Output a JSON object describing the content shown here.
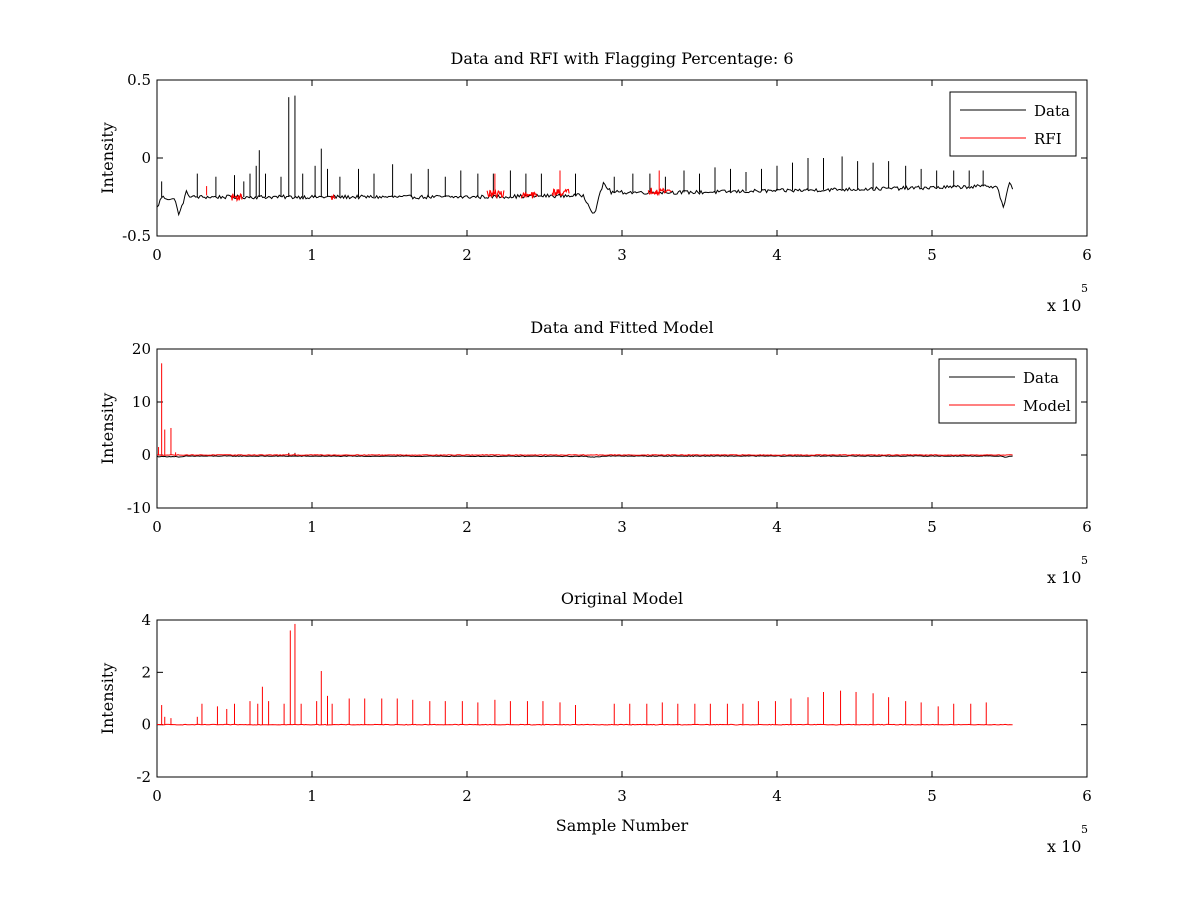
{
  "figure": {
    "background": "#ffffff",
    "xlabel_bottom": "Sample Number"
  },
  "chart_data": [
    {
      "type": "line",
      "title": "Data and RFI with Flagging Percentage: 6",
      "xlabel": "",
      "ylabel": "Intensity",
      "xlim": [
        0,
        6
      ],
      "ylim": [
        -0.5,
        0.5
      ],
      "x_ticks": [
        "0",
        "1",
        "2",
        "3",
        "4",
        "5",
        "6"
      ],
      "y_ticks": [
        "0.5",
        "0",
        "-0.5"
      ],
      "x_multiplier": {
        "base": "x 10",
        "exponent": "5"
      },
      "legend": {
        "position": "top-right",
        "entries": [
          "Data",
          "RFI"
        ]
      },
      "series": [
        {
          "name": "Data",
          "color": "#000000",
          "baseline": [
            [
              0,
              -0.32
            ],
            [
              0.03,
              -0.25
            ],
            [
              0.12,
              -0.27
            ],
            [
              0.14,
              -0.37
            ],
            [
              0.19,
              -0.22
            ],
            [
              0.22,
              -0.25
            ],
            [
              1.0,
              -0.25
            ],
            [
              2.0,
              -0.25
            ],
            [
              2.75,
              -0.24
            ],
            [
              2.82,
              -0.36
            ],
            [
              2.88,
              -0.16
            ],
            [
              2.93,
              -0.22
            ],
            [
              3.5,
              -0.22
            ],
            [
              4.0,
              -0.21
            ],
            [
              5.0,
              -0.19
            ],
            [
              5.42,
              -0.18
            ],
            [
              5.46,
              -0.32
            ],
            [
              5.5,
              -0.16
            ],
            [
              5.52,
              -0.2
            ]
          ],
          "spikes": [
            [
              0.03,
              -0.15
            ],
            [
              0.26,
              -0.1
            ],
            [
              0.38,
              -0.12
            ],
            [
              0.5,
              -0.11
            ],
            [
              0.56,
              -0.15
            ],
            [
              0.6,
              -0.1
            ],
            [
              0.64,
              -0.05
            ],
            [
              0.66,
              0.05
            ],
            [
              0.7,
              -0.1
            ],
            [
              0.8,
              -0.12
            ],
            [
              0.85,
              0.39
            ],
            [
              0.89,
              0.4
            ],
            [
              0.94,
              -0.1
            ],
            [
              1.02,
              -0.05
            ],
            [
              1.06,
              0.06
            ],
            [
              1.1,
              -0.07
            ],
            [
              1.18,
              -0.12
            ],
            [
              1.3,
              -0.07
            ],
            [
              1.4,
              -0.1
            ],
            [
              1.52,
              -0.04
            ],
            [
              1.64,
              -0.1
            ],
            [
              1.75,
              -0.07
            ],
            [
              1.86,
              -0.12
            ],
            [
              1.96,
              -0.08
            ],
            [
              2.07,
              -0.1
            ],
            [
              2.17,
              -0.1
            ],
            [
              2.28,
              -0.08
            ],
            [
              2.38,
              -0.1
            ],
            [
              2.48,
              -0.1
            ],
            [
              2.6,
              -0.1
            ],
            [
              2.7,
              -0.1
            ],
            [
              2.95,
              -0.12
            ],
            [
              3.07,
              -0.1
            ],
            [
              3.18,
              -0.1
            ],
            [
              3.28,
              -0.12
            ],
            [
              3.4,
              -0.08
            ],
            [
              3.5,
              -0.1
            ],
            [
              3.6,
              -0.06
            ],
            [
              3.7,
              -0.07
            ],
            [
              3.8,
              -0.09
            ],
            [
              3.9,
              -0.07
            ],
            [
              4.0,
              -0.05
            ],
            [
              4.1,
              -0.03
            ],
            [
              4.2,
              0.0
            ],
            [
              4.3,
              0.0
            ],
            [
              4.42,
              0.01
            ],
            [
              4.52,
              -0.02
            ],
            [
              4.62,
              -0.03
            ],
            [
              4.72,
              -0.02
            ],
            [
              4.83,
              -0.05
            ],
            [
              4.93,
              -0.07
            ],
            [
              5.03,
              -0.08
            ],
            [
              5.14,
              -0.08
            ],
            [
              5.24,
              -0.08
            ],
            [
              5.33,
              -0.08
            ]
          ]
        },
        {
          "name": "RFI",
          "color": "#ff0000",
          "bands": [
            [
              0.48,
              0.55,
              -0.25
            ],
            [
              1.12,
              1.15,
              -0.25
            ],
            [
              2.13,
              2.24,
              -0.23
            ],
            [
              2.35,
              2.45,
              -0.24
            ],
            [
              2.55,
              2.66,
              -0.22
            ],
            [
              3.17,
              3.32,
              -0.21
            ]
          ],
          "spikes": [
            [
              0.32,
              -0.18
            ],
            [
              2.18,
              -0.1
            ],
            [
              2.6,
              -0.08
            ],
            [
              3.24,
              -0.08
            ]
          ]
        }
      ]
    },
    {
      "type": "line",
      "title": "Data and Fitted Model",
      "xlabel": "",
      "ylabel": "Intensity",
      "xlim": [
        0,
        6
      ],
      "ylim": [
        -10,
        20
      ],
      "x_ticks": [
        "0",
        "1",
        "2",
        "3",
        "4",
        "5",
        "6"
      ],
      "y_ticks": [
        "20",
        "10",
        "0",
        "-10"
      ],
      "x_multiplier": {
        "base": "x 10",
        "exponent": "5"
      },
      "legend": {
        "position": "top-right",
        "entries": [
          "Data",
          "Model"
        ]
      },
      "series": [
        {
          "name": "Data",
          "color": "#000000",
          "baseline": [
            [
              0,
              -0.3
            ],
            [
              0.12,
              -0.3
            ],
            [
              0.14,
              -0.45
            ],
            [
              0.19,
              -0.2
            ],
            [
              2.75,
              -0.25
            ],
            [
              2.82,
              -0.4
            ],
            [
              2.88,
              -0.2
            ],
            [
              5.45,
              -0.2
            ],
            [
              5.47,
              -0.4
            ],
            [
              5.52,
              -0.2
            ]
          ],
          "spikes": [
            [
              0.85,
              0.4
            ],
            [
              0.89,
              0.4
            ],
            [
              1.06,
              0.1
            ]
          ]
        },
        {
          "name": "Model",
          "color": "#ff0000",
          "baseline": [
            [
              0,
              0
            ],
            [
              5.52,
              0
            ]
          ],
          "spikes": [
            [
              0.01,
              1.5
            ],
            [
              0.03,
              17.3
            ],
            [
              0.05,
              4.8
            ],
            [
              0.09,
              5.1
            ],
            [
              0.12,
              0.5
            ],
            [
              0.85,
              0.3
            ],
            [
              0.89,
              0.3
            ]
          ]
        }
      ]
    },
    {
      "type": "line",
      "title": "Original Model",
      "xlabel": "Sample Number",
      "ylabel": "Intensity",
      "xlim": [
        0,
        6
      ],
      "ylim": [
        -2,
        4
      ],
      "x_ticks": [
        "0",
        "1",
        "2",
        "3",
        "4",
        "5",
        "6"
      ],
      "y_ticks": [
        "4",
        "2",
        "0",
        "-2"
      ],
      "x_multiplier": {
        "base": "x 10",
        "exponent": "5"
      },
      "legend": null,
      "series": [
        {
          "name": "",
          "color": "#ff0000",
          "baseline": [
            [
              0,
              0
            ],
            [
              5.52,
              0
            ]
          ],
          "spikes": [
            [
              0.03,
              0.75
            ],
            [
              0.05,
              0.3
            ],
            [
              0.09,
              0.25
            ],
            [
              0.26,
              0.3
            ],
            [
              0.29,
              0.8
            ],
            [
              0.39,
              0.7
            ],
            [
              0.45,
              0.6
            ],
            [
              0.5,
              0.8
            ],
            [
              0.6,
              0.9
            ],
            [
              0.65,
              0.8
            ],
            [
              0.68,
              1.45
            ],
            [
              0.72,
              0.9
            ],
            [
              0.82,
              0.8
            ],
            [
              0.86,
              3.6
            ],
            [
              0.89,
              3.85
            ],
            [
              0.93,
              0.8
            ],
            [
              1.03,
              0.9
            ],
            [
              1.06,
              2.05
            ],
            [
              1.1,
              1.1
            ],
            [
              1.13,
              0.8
            ],
            [
              1.24,
              1.0
            ],
            [
              1.34,
              1.0
            ],
            [
              1.45,
              1.0
            ],
            [
              1.55,
              1.0
            ],
            [
              1.65,
              0.95
            ],
            [
              1.76,
              0.9
            ],
            [
              1.86,
              0.9
            ],
            [
              1.97,
              0.9
            ],
            [
              2.07,
              0.85
            ],
            [
              2.18,
              0.95
            ],
            [
              2.28,
              0.9
            ],
            [
              2.39,
              0.9
            ],
            [
              2.49,
              0.9
            ],
            [
              2.6,
              0.85
            ],
            [
              2.7,
              0.75
            ],
            [
              2.95,
              0.8
            ],
            [
              3.05,
              0.8
            ],
            [
              3.16,
              0.8
            ],
            [
              3.26,
              0.85
            ],
            [
              3.36,
              0.8
            ],
            [
              3.47,
              0.8
            ],
            [
              3.57,
              0.8
            ],
            [
              3.68,
              0.8
            ],
            [
              3.78,
              0.8
            ],
            [
              3.88,
              0.9
            ],
            [
              3.99,
              0.9
            ],
            [
              4.09,
              1.0
            ],
            [
              4.2,
              1.05
            ],
            [
              4.3,
              1.25
            ],
            [
              4.41,
              1.3
            ],
            [
              4.51,
              1.25
            ],
            [
              4.62,
              1.2
            ],
            [
              4.72,
              1.05
            ],
            [
              4.83,
              0.9
            ],
            [
              4.93,
              0.85
            ],
            [
              5.04,
              0.7
            ],
            [
              5.14,
              0.8
            ],
            [
              5.25,
              0.8
            ],
            [
              5.35,
              0.85
            ]
          ]
        }
      ]
    }
  ]
}
